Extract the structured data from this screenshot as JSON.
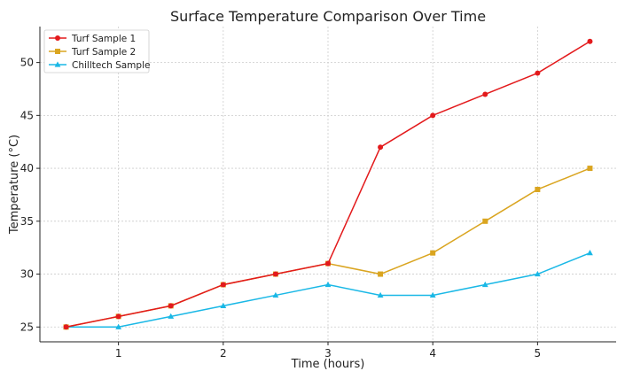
{
  "chart_data": {
    "type": "line",
    "title": "Surface Temperature Comparison Over Time",
    "xlabel": "Time (hours)",
    "ylabel": "Temperature (°C)",
    "x": [
      0.5,
      1,
      1.5,
      2,
      2.5,
      3,
      3.5,
      4,
      4.5,
      5,
      5.5
    ],
    "xlim": [
      0.25,
      5.75
    ],
    "ylim": [
      23.6,
      53.4
    ],
    "xticks": [
      1,
      2,
      3,
      4,
      5
    ],
    "yticks": [
      25,
      30,
      35,
      40,
      45,
      50
    ],
    "grid": true,
    "legend_position": "top-left",
    "series": [
      {
        "name": "Turf Sample 1",
        "color": "#e31a1c",
        "marker": "circle",
        "values": [
          25,
          26,
          27,
          29,
          30,
          31,
          42,
          45,
          47,
          49,
          52
        ]
      },
      {
        "name": "Turf Sample 2",
        "color": "#daa520",
        "marker": "square",
        "values": [
          25,
          26,
          27,
          29,
          30,
          31,
          30,
          32,
          35,
          38,
          40
        ]
      },
      {
        "name": "Chilltech Sample",
        "color": "#1ab8e6",
        "marker": "triangle",
        "values": [
          25,
          25,
          26,
          27,
          28,
          29,
          28,
          28,
          29,
          30,
          32
        ]
      }
    ]
  }
}
